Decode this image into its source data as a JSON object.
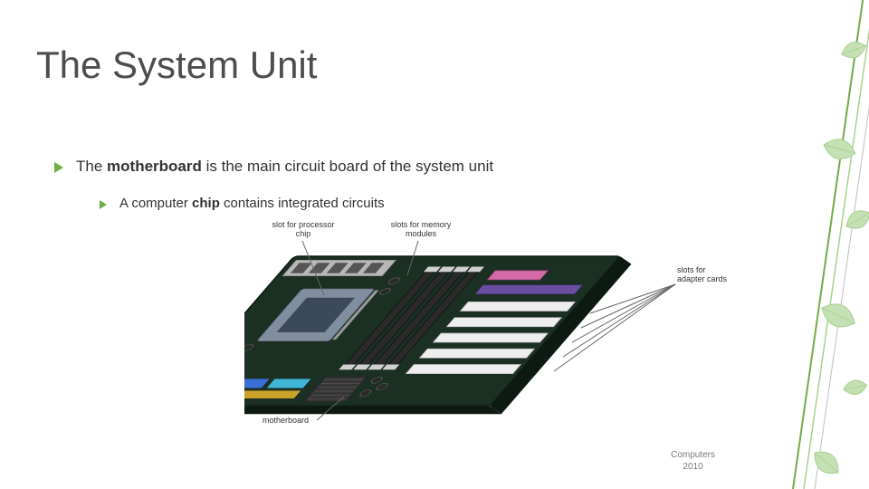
{
  "title": "The System Unit",
  "bullets": {
    "b1": {
      "pre": "The ",
      "bold": "motherboard",
      "post": " is the main circuit board of the system unit"
    },
    "b2": {
      "pre": "A computer ",
      "bold": "chip",
      "post": " contains integrated circuits"
    }
  },
  "figure": {
    "labels": {
      "proc_slot": "slot for\nprocessor chip",
      "mem_slots": "slots for memory\nmodules",
      "adapter_slots": "slots for\nadapter cards",
      "mobo": "motherboard"
    },
    "colors": {
      "pcb": "#1b2f23",
      "pcb_edge": "#0d1a12",
      "socket": "#7f8fa0",
      "socket_hole": "#3a4a5a",
      "dimm": "#2a2a2a",
      "dimm_latch": "#d0d0d0",
      "pci_white": "#eeeeee",
      "pci_pink": "#d66aa8",
      "agp_purple": "#6a4fa0",
      "chipset": "#363636",
      "conn_blue": "#3a6fd8",
      "conn_cyan": "#3fb5d8",
      "conn_yellow": "#c9a227",
      "cap": "#2a2a2a",
      "io_silver": "#b8b8b8"
    }
  },
  "footer": {
    "line1": "Computers",
    "line2": "2010"
  },
  "deco": {
    "leaf_fill": "#c5e0b4",
    "leaf_stroke": "#a9d18e",
    "line1": "#a9d18e",
    "line2": "#70ad47",
    "line3": "#bfbfbf"
  }
}
